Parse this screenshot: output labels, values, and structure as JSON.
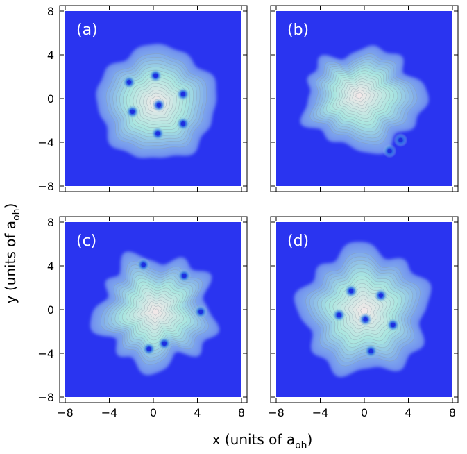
{
  "figure": {
    "ylabel_main": "y (units of a",
    "ylabel_sub": "oh",
    "ylabel_close": ")",
    "xlabel_main": "x (units of a",
    "xlabel_sub": "oh",
    "xlabel_close": ")"
  },
  "colors": {
    "background_density": "#2a34f0",
    "peak_density": "#f1e8e8",
    "mid_density": "#a8e6e0",
    "contour": "#8a9aa6",
    "vortex_core": "#1d2fe0"
  },
  "chart_data": [
    {
      "type": "heatmap",
      "panel_label": "(a)",
      "xlim": [
        -8,
        8
      ],
      "ylim": [
        -8,
        8
      ],
      "x_ticks": [
        -8,
        -4,
        0,
        4,
        8
      ],
      "y_ticks": [
        -8,
        -4,
        0,
        4,
        8
      ],
      "x_tick_labels": [
        "",
        "",
        "",
        "",
        ""
      ],
      "y_tick_labels": [
        "8",
        "4",
        "0",
        "−4",
        "−8"
      ],
      "cloud": {
        "cx": 0.3,
        "cy": -0.4,
        "rx": 5.4,
        "ry": 5.2,
        "roughness": 0.08
      },
      "vortices": [
        [
          -2.2,
          1.5
        ],
        [
          0.2,
          2.1
        ],
        [
          2.7,
          0.4
        ],
        [
          0.5,
          -0.6
        ],
        [
          -1.9,
          -1.2
        ],
        [
          2.7,
          -2.3
        ],
        [
          0.4,
          -3.2
        ]
      ]
    },
    {
      "type": "heatmap",
      "panel_label": "(b)",
      "xlim": [
        -8,
        8
      ],
      "ylim": [
        -8,
        8
      ],
      "x_ticks": [
        -8,
        -4,
        0,
        4,
        8
      ],
      "y_ticks": [
        -8,
        -4,
        0,
        4,
        8
      ],
      "x_tick_labels": [
        "",
        "",
        "",
        "",
        ""
      ],
      "y_tick_labels": [
        "",
        "",
        "",
        "",
        ""
      ],
      "cloud": {
        "cx": -0.5,
        "cy": 0.3,
        "rx": 5.4,
        "ry": 4.6,
        "roughness": 0.15
      },
      "vortices": [
        [
          3.3,
          -3.8
        ],
        [
          2.3,
          -4.8
        ]
      ]
    },
    {
      "type": "heatmap",
      "panel_label": "(c)",
      "xlim": [
        -8,
        8
      ],
      "ylim": [
        -8,
        8
      ],
      "x_ticks": [
        -8,
        -4,
        0,
        4,
        8
      ],
      "y_ticks": [
        -8,
        -4,
        0,
        4,
        8
      ],
      "x_tick_labels": [
        "−8",
        "−4",
        "0",
        "4",
        "8"
      ],
      "y_tick_labels": [
        "8",
        "4",
        "0",
        "−4",
        "−8"
      ],
      "cloud": {
        "cx": 0.2,
        "cy": -0.2,
        "rx": 5.3,
        "ry": 5.1,
        "roughness": 0.2
      },
      "vortices": [
        [
          -0.9,
          4.1
        ],
        [
          2.8,
          3.1
        ],
        [
          4.3,
          -0.2
        ],
        [
          1.0,
          -3.1
        ],
        [
          -0.4,
          -3.6
        ]
      ]
    },
    {
      "type": "heatmap",
      "panel_label": "(d)",
      "xlim": [
        -8,
        8
      ],
      "ylim": [
        -8,
        8
      ],
      "x_ticks": [
        -8,
        -4,
        0,
        4,
        8
      ],
      "y_ticks": [
        -8,
        -4,
        0,
        4,
        8
      ],
      "x_tick_labels": [
        "−8",
        "−4",
        "0",
        "4",
        "8"
      ],
      "y_tick_labels": [
        "",
        "",
        "",
        "",
        ""
      ],
      "cloud": {
        "cx": 0.0,
        "cy": -0.1,
        "rx": 5.8,
        "ry": 5.8,
        "roughness": 0.14
      },
      "vortices": [
        [
          -1.2,
          1.7
        ],
        [
          1.5,
          1.3
        ],
        [
          -2.3,
          -0.5
        ],
        [
          0.1,
          -0.9
        ],
        [
          2.6,
          -1.4
        ],
        [
          0.6,
          -3.8
        ]
      ]
    }
  ]
}
